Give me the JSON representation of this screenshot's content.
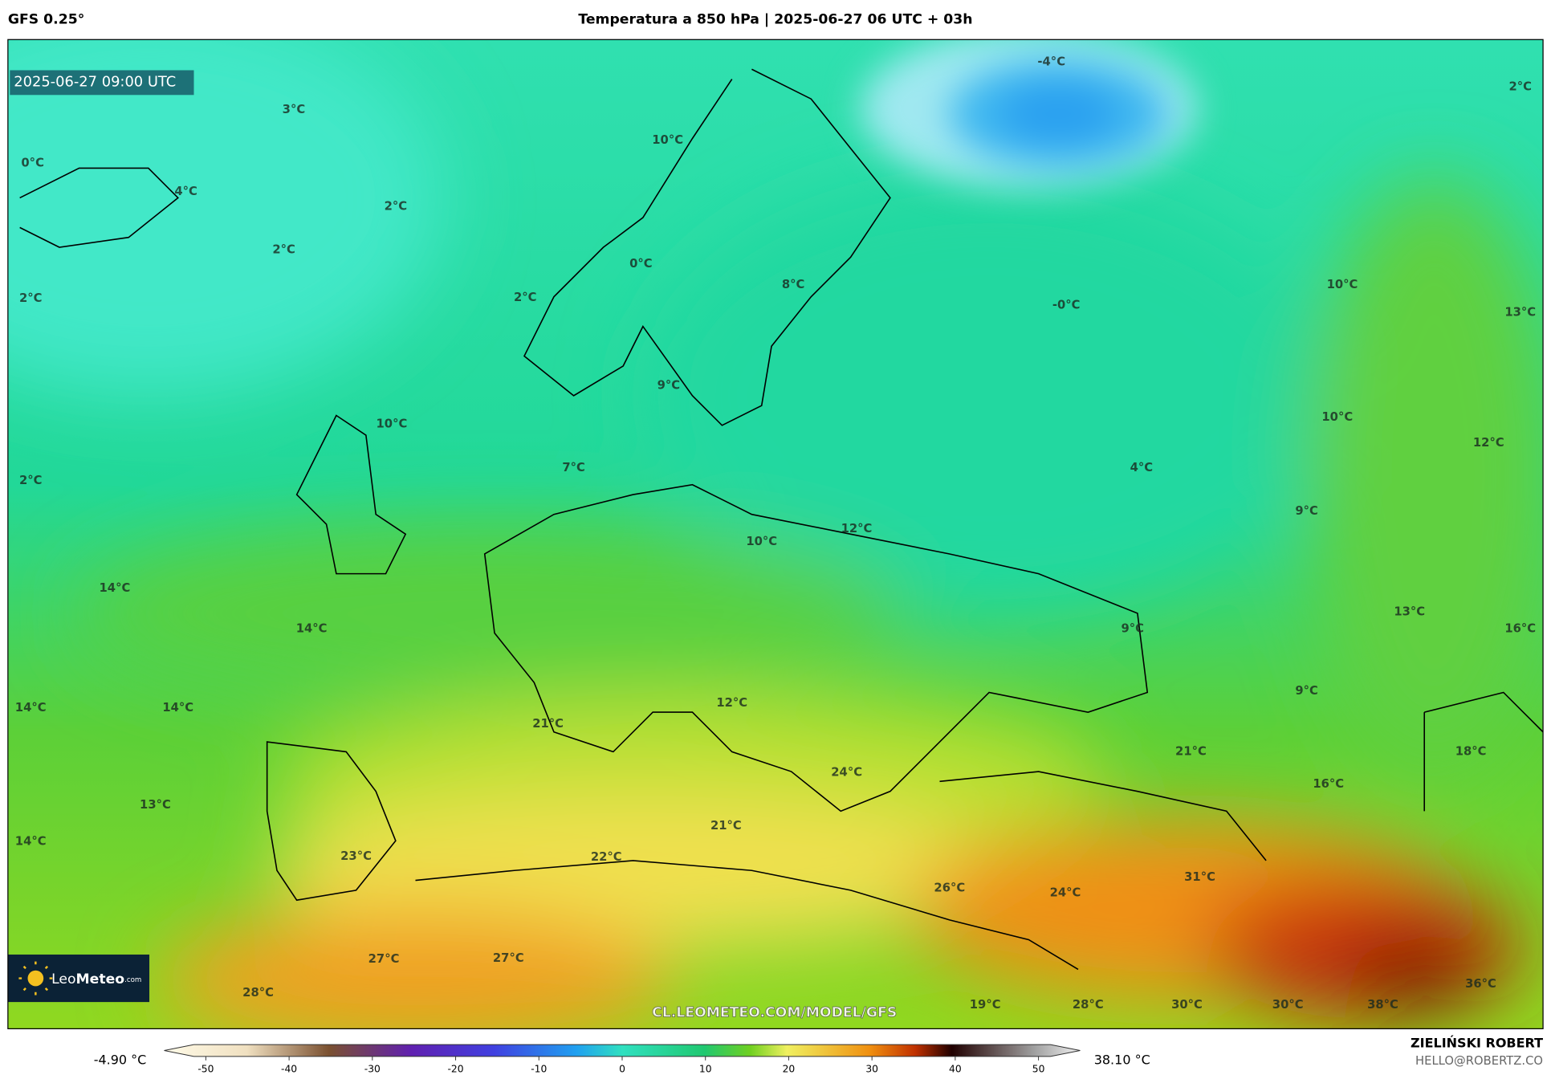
{
  "header": {
    "model": "GFS 0.25°",
    "title": "Temperatura a 850 hPa | 2025-06-27 06 UTC + 03h"
  },
  "timestamp": "2025-06-27 09:00 UTC",
  "labels": [
    "-4°C",
    "2°C",
    "3°C",
    "10°C",
    "0°C",
    "4°C",
    "2°C",
    "2°C",
    "0°C",
    "8°C",
    "10°C",
    "2°C",
    "2°C",
    "-0°C",
    "13°C",
    "9°C",
    "10°C",
    "10°C",
    "12°C",
    "4°C",
    "7°C",
    "2°C",
    "9°C",
    "12°C",
    "10°C",
    "14°C",
    "13°C",
    "14°C",
    "9°C",
    "16°C",
    "9°C",
    "12°C",
    "14°C",
    "14°C",
    "21°C",
    "21°C",
    "18°C",
    "24°C",
    "16°C",
    "13°C",
    "21°C",
    "14°C",
    "23°C",
    "22°C",
    "31°C",
    "26°C",
    "24°C",
    "27°C",
    "27°C",
    "36°C",
    "28°C",
    "19°C",
    "28°C",
    "30°C",
    "30°C",
    "38°C"
  ],
  "logo": {
    "leo": "Leo",
    "meteo": "Meteo",
    "suffix": ".com"
  },
  "watermark": "CL.LEOMETEO.COM/MODEL/GFS",
  "footer": {
    "author": "ZIELIŃSKI ROBERT",
    "email": "HELLO@ROBERTZ.CO"
  },
  "colorbar": {
    "min_label": "-4.90 °C",
    "max_label": "38.10 °C",
    "lim": [
      -55,
      55
    ],
    "ticks": [
      -50,
      -40,
      -30,
      -20,
      -10,
      0,
      10,
      20,
      30,
      40,
      50
    ]
  }
}
